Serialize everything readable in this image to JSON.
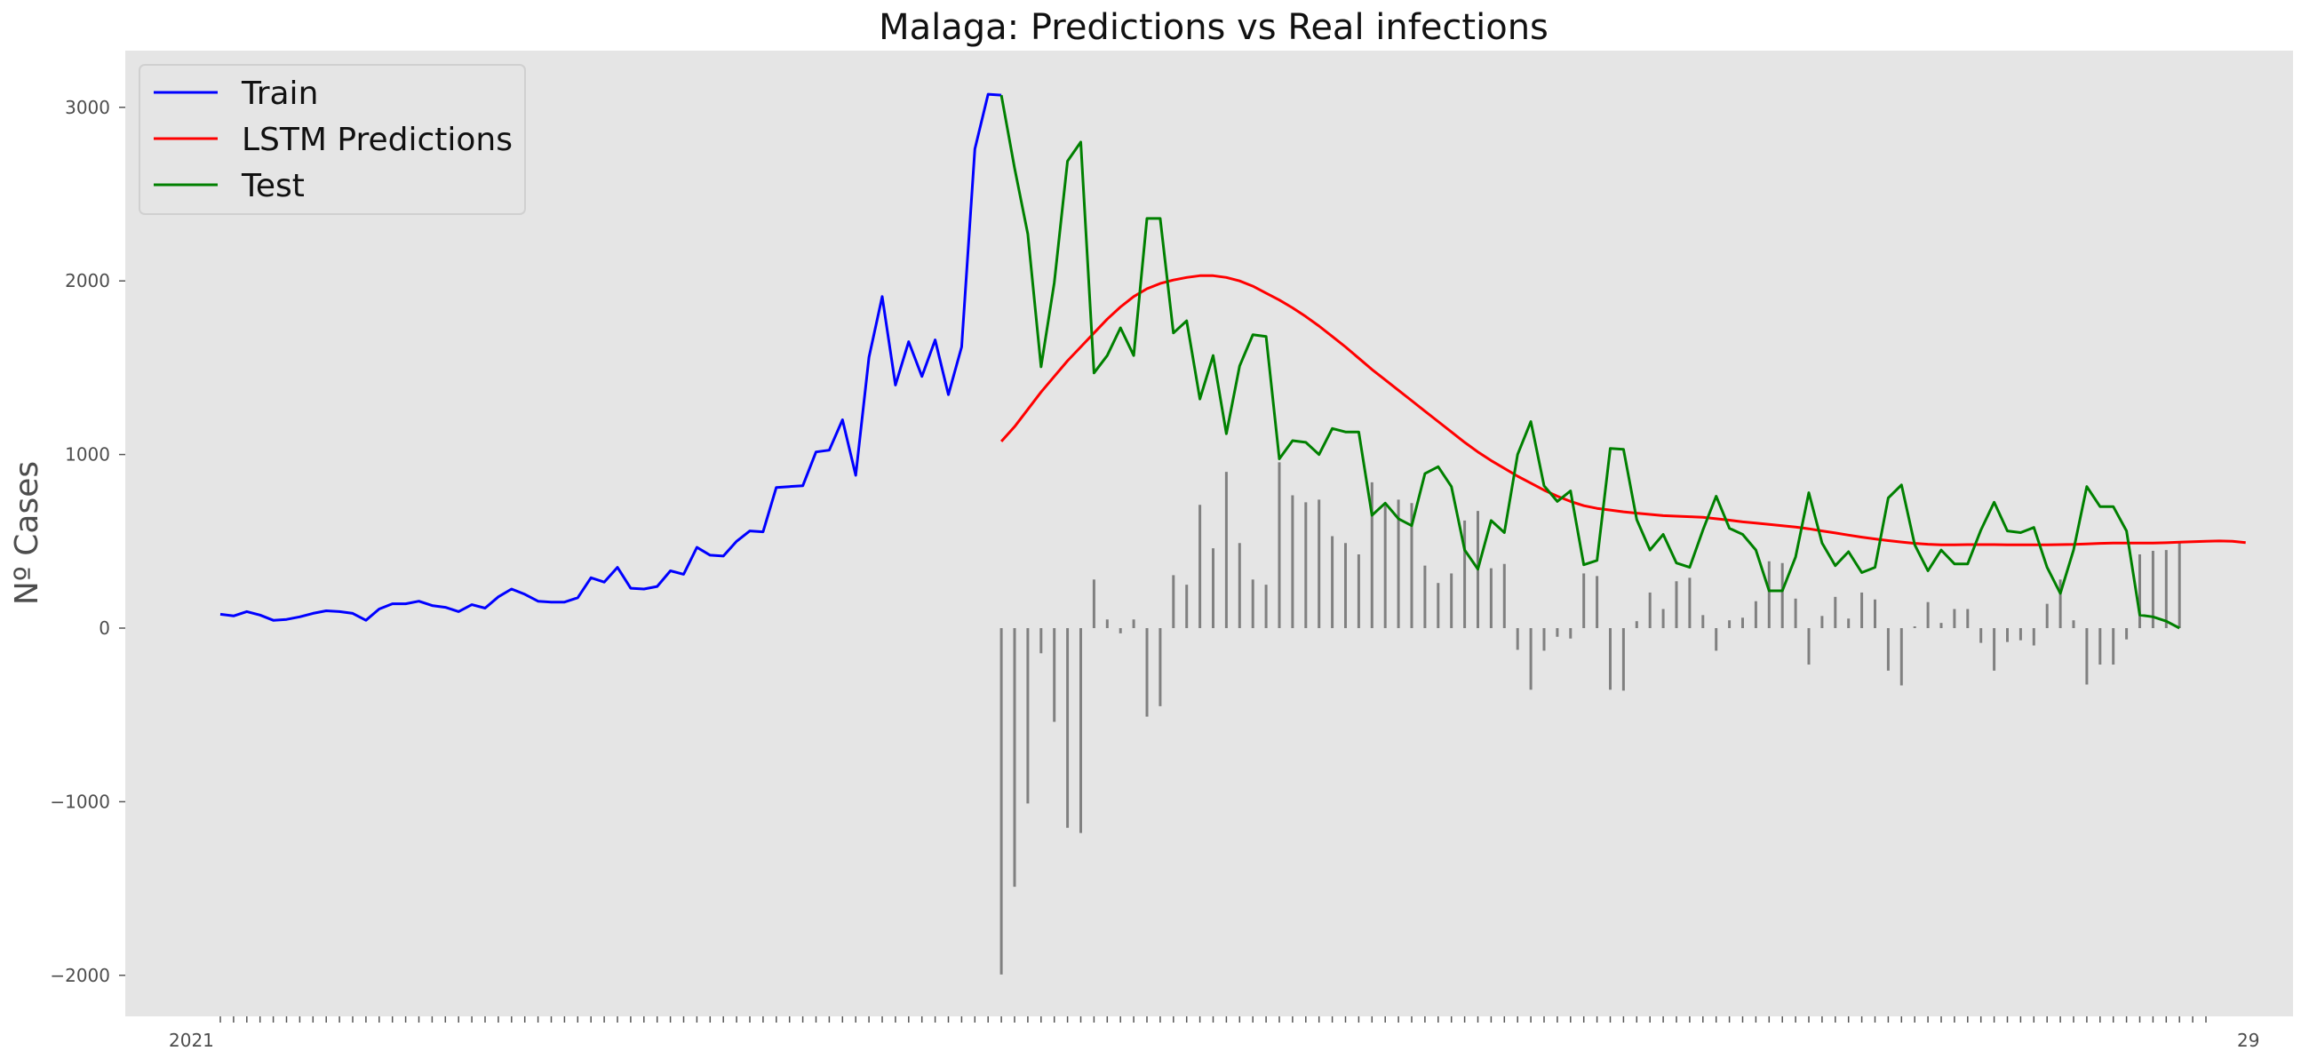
{
  "chart_data": {
    "type": "line",
    "title": "Malaga: Predictions vs Real infections",
    "xlabel": "",
    "ylabel": "Nº Cases",
    "ylim": [
      -2250,
      3300
    ],
    "yticks": [
      -2000,
      -1000,
      0,
      1000,
      2000,
      3000
    ],
    "ytick_labels": [
      "−2000",
      "−1000",
      "0",
      "1000",
      "2000",
      "3000"
    ],
    "x_tick_label_first": "2021",
    "x_tick_label_last": "29",
    "x_range": [
      0,
      150
    ],
    "grid": false,
    "legend_position": "top-left",
    "colors": {
      "background": "#e5e5e5",
      "train": "#0000ff",
      "predictions": "#ff0000",
      "test": "#008000",
      "residual": "#808080"
    },
    "series": [
      {
        "name": "Train",
        "x_start": 0,
        "values": [
          80,
          70,
          95,
          75,
          45,
          50,
          65,
          85,
          100,
          95,
          85,
          45,
          110,
          140,
          140,
          155,
          130,
          120,
          95,
          135,
          115,
          180,
          225,
          195,
          155,
          150,
          150,
          175,
          290,
          265,
          350,
          230,
          225,
          240,
          330,
          310,
          465,
          420,
          415,
          500,
          560,
          555,
          810,
          815,
          820,
          1015,
          1025,
          1200,
          880,
          1560,
          1910,
          1400,
          1650,
          1450,
          1660,
          1345,
          1620,
          2760,
          3075,
          3070
        ]
      },
      {
        "name": "LSTM Predictions",
        "x_start": 59,
        "values": [
          1075,
          1160,
          1260,
          1360,
          1450,
          1540,
          1620,
          1700,
          1780,
          1850,
          1910,
          1955,
          1985,
          2005,
          2020,
          2030,
          2030,
          2020,
          2000,
          1970,
          1930,
          1890,
          1845,
          1795,
          1740,
          1680,
          1620,
          1555,
          1490,
          1430,
          1370,
          1310,
          1250,
          1190,
          1130,
          1070,
          1015,
          965,
          920,
          875,
          835,
          795,
          760,
          730,
          705,
          690,
          680,
          670,
          662,
          655,
          648,
          645,
          642,
          638,
          630,
          622,
          612,
          605,
          598,
          590,
          582,
          572,
          560,
          548,
          536,
          524,
          514,
          504,
          496,
          488,
          483,
          480,
          480,
          481,
          481,
          481,
          480,
          480,
          480,
          480,
          481,
          482,
          485,
          488,
          490,
          490,
          490,
          490,
          492,
          495,
          498,
          500,
          502,
          500,
          493
        ]
      },
      {
        "name": "Test",
        "x_start": 59,
        "values": [
          3070,
          2650,
          2270,
          1505,
          1990,
          2690,
          2800,
          1470,
          1570,
          1730,
          1570,
          2360,
          2360,
          1700,
          1770,
          1320,
          1570,
          1120,
          1510,
          1690,
          1680,
          975,
          1080,
          1070,
          1000,
          1150,
          1130,
          1130,
          650,
          720,
          630,
          590,
          890,
          930,
          815,
          450,
          340,
          620,
          550,
          1000,
          1190,
          820,
          730,
          790,
          365,
          390,
          1035,
          1030,
          625,
          450,
          540,
          375,
          350,
          565,
          760,
          575,
          540,
          450,
          215,
          215,
          410,
          780,
          490,
          360,
          440,
          320,
          350,
          750,
          825,
          480,
          330,
          450,
          370,
          370,
          565,
          725,
          560,
          550,
          580,
          350,
          200,
          450,
          815,
          700,
          700,
          560,
          75,
          65,
          40,
          0
        ]
      },
      {
        "name": "Residual",
        "x_start": 59,
        "values": [
          -1995,
          -1490,
          -1010,
          -145,
          -540,
          -1150,
          -1180,
          280,
          50,
          -30,
          50,
          -510,
          -450,
          305,
          250,
          710,
          460,
          900,
          490,
          280,
          250,
          955,
          765,
          725,
          740,
          530,
          490,
          425,
          840,
          710,
          740,
          720,
          360,
          260,
          315,
          620,
          675,
          345,
          370,
          -125,
          -355,
          -130,
          -50,
          -60,
          315,
          300,
          -355,
          -360,
          40,
          205,
          110,
          270,
          290,
          75,
          -130,
          45,
          60,
          155,
          385,
          375,
          170,
          -210,
          70,
          180,
          55,
          205,
          165,
          -245,
          -330,
          10,
          150,
          30,
          110,
          110,
          -85,
          -245,
          -80,
          -70,
          -100,
          140,
          280,
          45,
          -325,
          -210,
          -210,
          -65,
          425,
          445,
          450,
          495
        ]
      }
    ]
  }
}
